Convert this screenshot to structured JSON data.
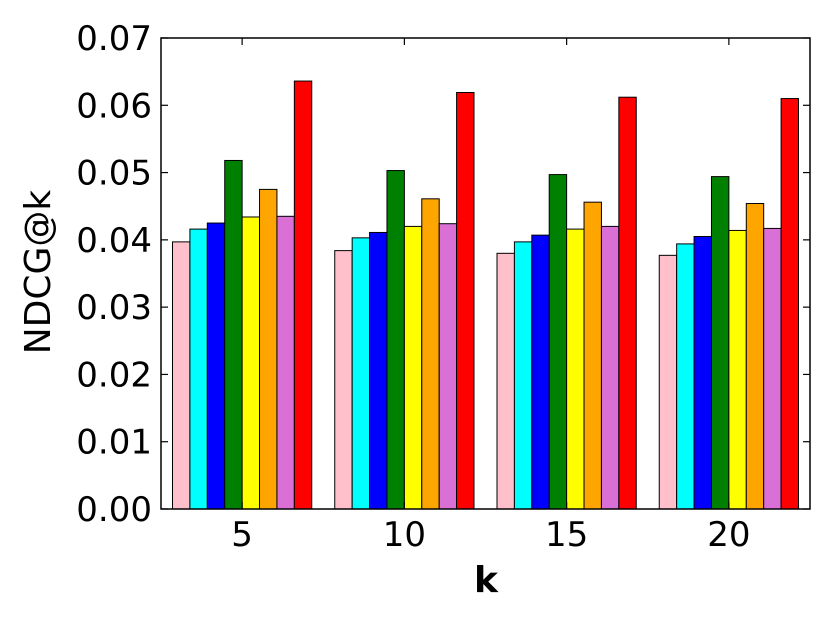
{
  "chart_data": {
    "type": "bar",
    "title": "",
    "xlabel": "k",
    "ylabel": "NDCG@k",
    "ylim": [
      0,
      0.07
    ],
    "yticks": [
      "0.00",
      "0.01",
      "0.02",
      "0.03",
      "0.04",
      "0.05",
      "0.06",
      "0.07"
    ],
    "categories": [
      "5",
      "10",
      "15",
      "20"
    ],
    "grid": false,
    "legend": "none",
    "series": [
      {
        "color": "#ffc0cb",
        "values": [
          0.0397,
          0.0384,
          0.038,
          0.0377
        ]
      },
      {
        "color": "#00ffff",
        "values": [
          0.0416,
          0.0403,
          0.0397,
          0.0394
        ]
      },
      {
        "color": "#0000ff",
        "values": [
          0.0425,
          0.0411,
          0.0407,
          0.0405
        ]
      },
      {
        "color": "#008000",
        "values": [
          0.0518,
          0.0503,
          0.0497,
          0.0494
        ]
      },
      {
        "color": "#ffff00",
        "values": [
          0.0434,
          0.042,
          0.0416,
          0.0414
        ]
      },
      {
        "color": "#ffa500",
        "values": [
          0.0475,
          0.0461,
          0.0456,
          0.0454
        ]
      },
      {
        "color": "#da70d6",
        "values": [
          0.0435,
          0.0424,
          0.042,
          0.0417
        ]
      },
      {
        "color": "#ff0000",
        "values": [
          0.0636,
          0.0619,
          0.0612,
          0.061
        ]
      }
    ]
  }
}
